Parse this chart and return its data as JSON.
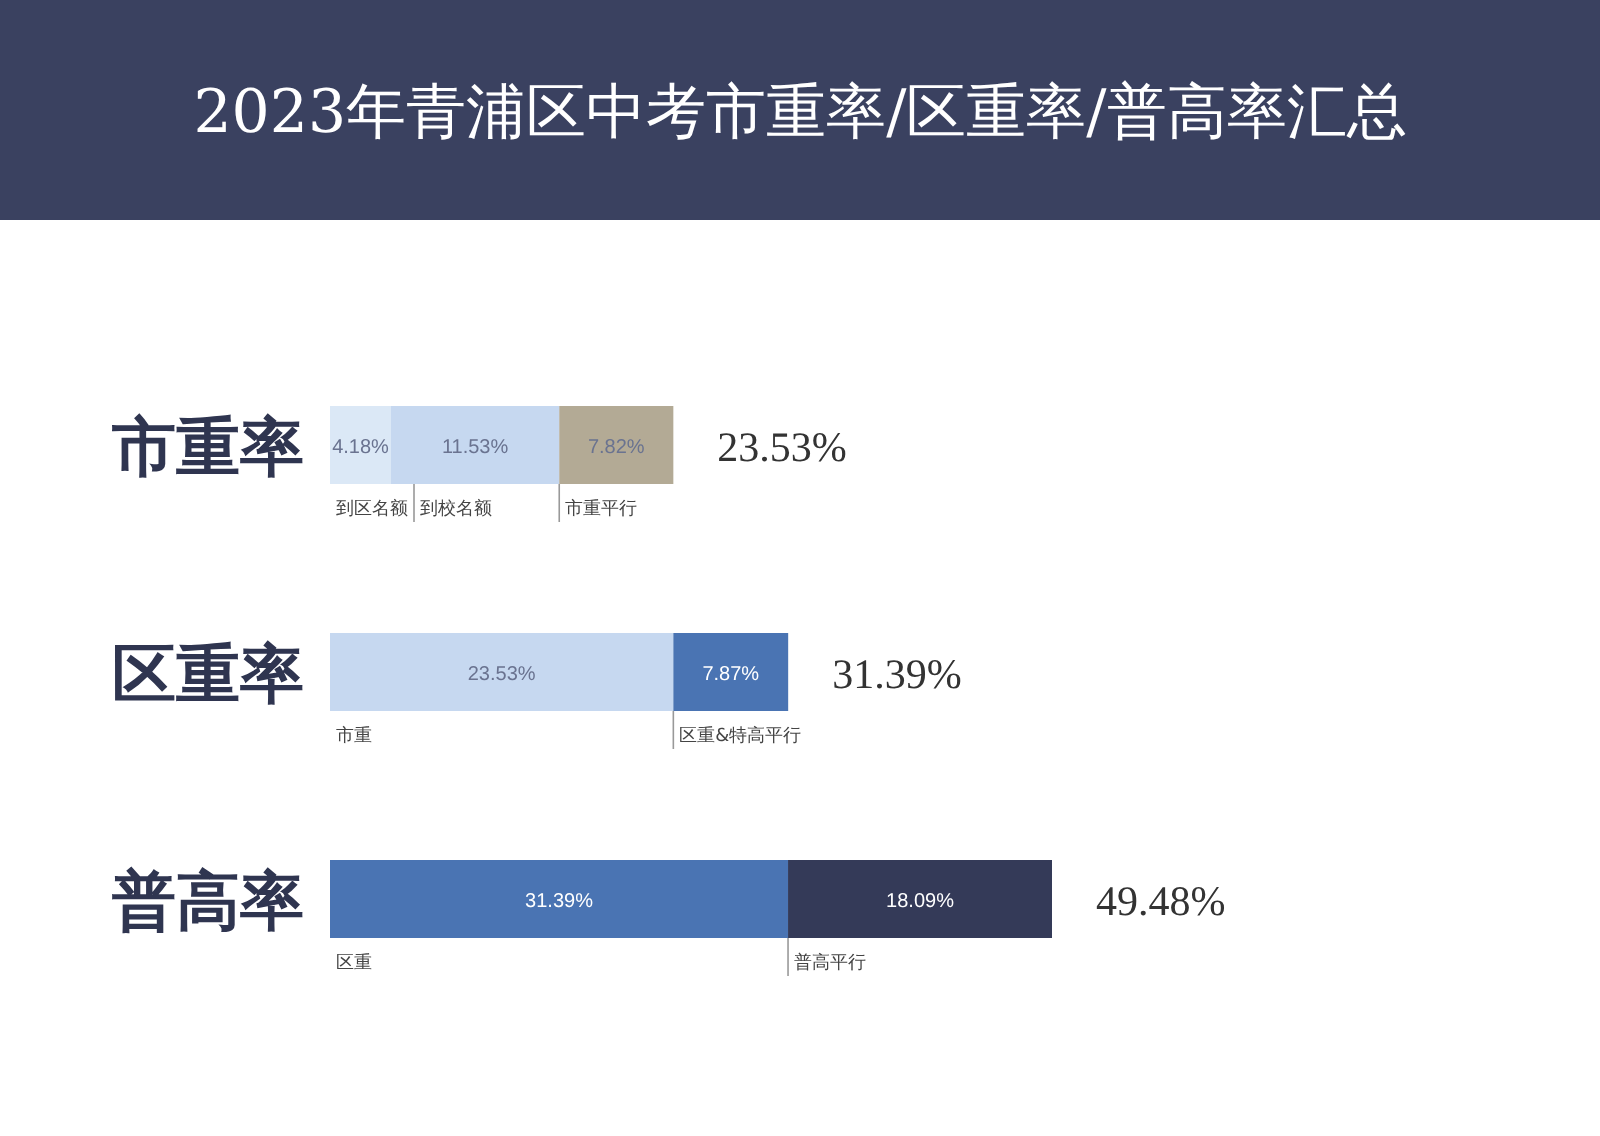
{
  "chart_data": {
    "type": "bar",
    "orientation": "horizontal",
    "stacked": true,
    "tick_labels": "y",
    "title": "2023年青浦区中考市重率/区重率/普高率汇总",
    "categories": [
      "市重率",
      "区重率",
      "普高率"
    ],
    "series": [
      {
        "name": "到区名额",
        "color": "#dbe8f6",
        "values": [
          4.18,
          null,
          null
        ],
        "value_labels": [
          "4.18%",
          null,
          null
        ]
      },
      {
        "name": "到校名额",
        "color": "#c6d8f0",
        "values": [
          11.53,
          null,
          null
        ],
        "value_labels": [
          "11.53%",
          null,
          null
        ]
      },
      {
        "name": "市重平行",
        "color": "#b3aa95",
        "values": [
          7.82,
          null,
          null
        ],
        "value_labels": [
          "7.82%",
          null,
          null
        ]
      },
      {
        "name": "市重",
        "color": "#c6d8f0",
        "values": [
          null,
          23.53,
          null
        ],
        "value_labels": [
          null,
          "23.53%",
          null
        ]
      },
      {
        "name": "区重&特高平行",
        "color": "#4a74b3",
        "values": [
          null,
          7.87,
          null
        ],
        "value_labels": [
          null,
          "7.87%",
          null
        ]
      },
      {
        "name": "区重",
        "color": "#4a74b3",
        "values": [
          null,
          null,
          31.39
        ],
        "value_labels": [
          null,
          null,
          "31.39%"
        ]
      },
      {
        "name": "普高平行",
        "color": "#343a58",
        "values": [
          null,
          null,
          18.09
        ],
        "value_labels": [
          null,
          null,
          "18.09%"
        ]
      }
    ],
    "totals": [
      "23.53%",
      "31.39%",
      "49.48%"
    ]
  }
}
